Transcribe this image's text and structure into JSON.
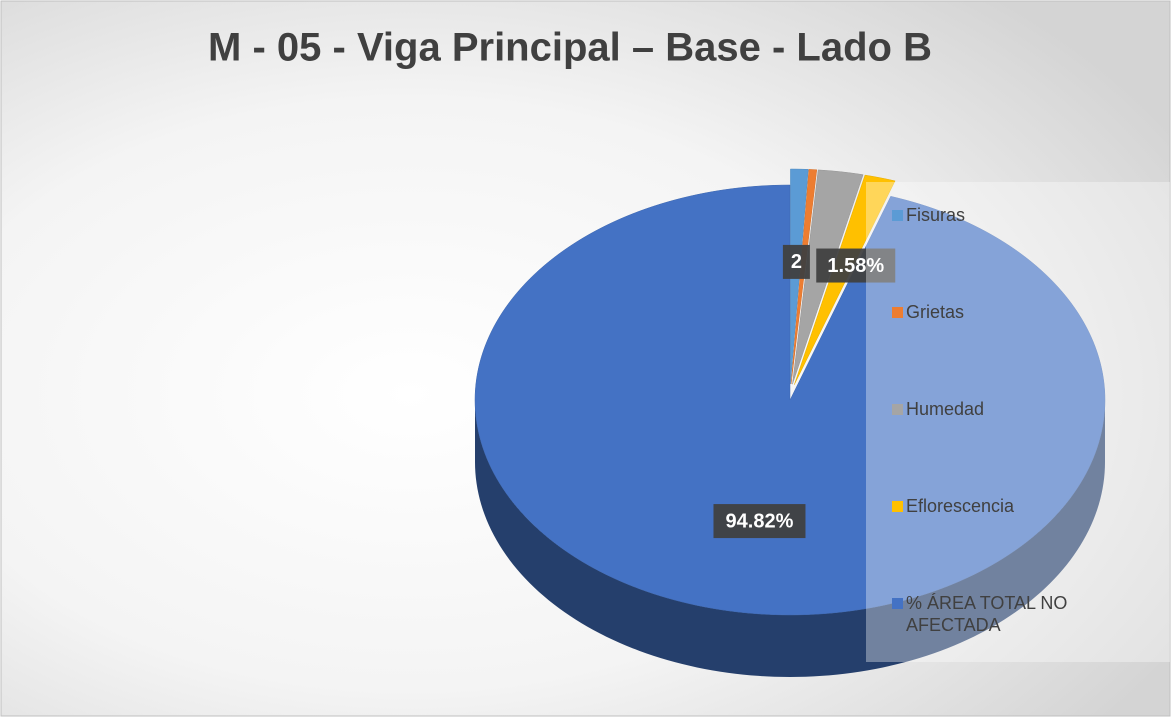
{
  "chart_data": {
    "type": "pie",
    "title": "M - 05 - Viga Principal – Base - Lado B",
    "categories": [
      "Fisuras",
      "Grietas",
      "Humedad",
      "Eflorescencia",
      "% ÁREA  TOTAL NO AFECTADA"
    ],
    "values": [
      0.9,
      0.4,
      2.3,
      1.58,
      94.82
    ],
    "value_labels": [
      null,
      null,
      "2",
      "1.58%",
      "94.82%"
    ],
    "colors": [
      "#5b9bd5",
      "#ed7d31",
      "#a5a5a5",
      "#ffc000",
      "#4472c4"
    ],
    "legend": "right"
  }
}
